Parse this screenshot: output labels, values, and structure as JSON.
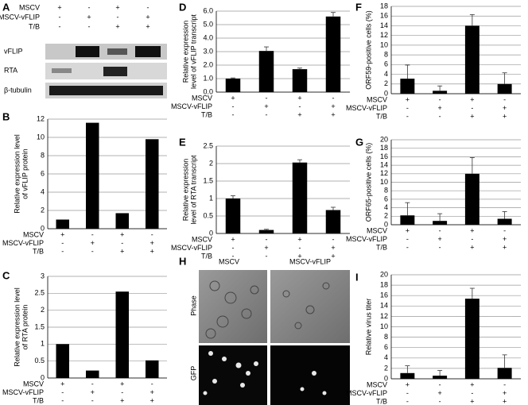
{
  "blot": {
    "panel": "A",
    "conditions": [
      {
        "name": "MSCV",
        "marks": [
          "+",
          "-",
          "+",
          "-"
        ]
      },
      {
        "name": "MSCV-vFLIP",
        "marks": [
          "-",
          "+",
          "-",
          "+"
        ]
      },
      {
        "name": "T/B",
        "marks": [
          "-",
          "-",
          "+",
          "+"
        ]
      }
    ],
    "rows": [
      "vFLIP",
      "RTA",
      "β-tubulin"
    ]
  },
  "micrograph": {
    "panel": "H",
    "columns": [
      "MSCV",
      "MSCV-vFLIP"
    ],
    "rows": [
      "Phase",
      "GFP"
    ]
  },
  "chart_data": [
    {
      "type": "bar",
      "panel": "B",
      "ylabel": [
        "Relative expression level",
        "of vFLIP protein"
      ],
      "values": [
        1,
        11.6,
        1.7,
        9.8
      ],
      "color": "#000000",
      "ylim": [
        0,
        12
      ],
      "yticks": [
        0,
        2,
        4,
        6,
        8,
        10,
        12
      ],
      "grid": true,
      "conditions": [
        {
          "name": "MSCV",
          "marks": [
            "+",
            "-",
            "+",
            "-"
          ]
        },
        {
          "name": "MSCV-vFLIP",
          "marks": [
            "-",
            "+",
            "-",
            "+"
          ]
        },
        {
          "name": "T/B",
          "marks": [
            "-",
            "-",
            "+",
            "+"
          ]
        }
      ]
    },
    {
      "type": "bar",
      "panel": "C",
      "ylabel": [
        "Relative expression level",
        "of RTA protein"
      ],
      "values": [
        1,
        0.22,
        2.55,
        0.52
      ],
      "color": "#000000",
      "ylim": [
        0,
        3
      ],
      "yticks": [
        0,
        0.5,
        1,
        1.5,
        2,
        2.5,
        3
      ],
      "grid": true,
      "conditions": [
        {
          "name": "MSCV",
          "marks": [
            "+",
            "-",
            "+",
            "-"
          ]
        },
        {
          "name": "MSCV-vFLIP",
          "marks": [
            "-",
            "+",
            "-",
            "+"
          ]
        },
        {
          "name": "T/B",
          "marks": [
            "-",
            "-",
            "+",
            "+"
          ]
        }
      ]
    },
    {
      "type": "bar",
      "panel": "D",
      "ylabel": [
        "Relative expression",
        "level of vFLIP transcript"
      ],
      "values": [
        1.0,
        3.05,
        1.7,
        5.6
      ],
      "error": [
        0.05,
        0.3,
        0.08,
        0.3
      ],
      "color": "#000000",
      "ylim": [
        0,
        6
      ],
      "yticks": [
        {
          "value": 0,
          "label": "0.0"
        },
        {
          "value": 1,
          "label": "1.0"
        },
        {
          "value": 2,
          "label": "2.0"
        },
        {
          "value": 3,
          "label": "3.0"
        },
        {
          "value": 4,
          "label": "4.0"
        },
        {
          "value": 5,
          "label": "5.0"
        },
        {
          "value": 6,
          "label": "6.0"
        }
      ],
      "grid": true,
      "conditions": [
        {
          "name": "MSCV",
          "marks": [
            "+",
            "-",
            "+",
            "-"
          ]
        },
        {
          "name": "MSCV-vFLIP",
          "marks": [
            "-",
            "+",
            "-",
            "+"
          ]
        },
        {
          "name": "T/B",
          "marks": [
            "-",
            "-",
            "+",
            "+"
          ]
        }
      ]
    },
    {
      "type": "bar",
      "panel": "E",
      "ylabel": [
        "Relative expression",
        "level of RTA transcript"
      ],
      "values": [
        1.0,
        0.1,
        2.03,
        0.67
      ],
      "error": [
        0.08,
        0.02,
        0.08,
        0.08
      ],
      "color": "#000000",
      "ylim": [
        0,
        2.5
      ],
      "yticks": [
        0,
        0.5,
        1,
        1.5,
        2,
        2.5
      ],
      "grid": true,
      "conditions": [
        {
          "name": "MSCV",
          "marks": [
            "+",
            "-",
            "+",
            "-"
          ]
        },
        {
          "name": "MSCV-vFLIP",
          "marks": [
            "-",
            "+",
            "-",
            "+"
          ]
        },
        {
          "name": "T/B",
          "marks": [
            "-",
            "-",
            "+",
            "+"
          ]
        }
      ]
    },
    {
      "type": "bar",
      "panel": "F",
      "ylabel": [
        "ORF59-positive cells (%)"
      ],
      "values": [
        3.1,
        0.6,
        14,
        2
      ],
      "error": [
        2.8,
        1,
        2.3,
        2.3
      ],
      "color": "#000000",
      "ylim": [
        0,
        18
      ],
      "yticks": [
        0,
        2,
        4,
        6,
        8,
        10,
        12,
        14,
        16,
        18
      ],
      "grid": true,
      "conditions": [
        {
          "name": "MSCV",
          "marks": [
            "+",
            "-",
            "+",
            "-"
          ]
        },
        {
          "name": "MSCV-vFLIP",
          "marks": [
            "-",
            "+",
            "-",
            "+"
          ]
        },
        {
          "name": "T/B",
          "marks": [
            "-",
            "-",
            "+",
            "+"
          ]
        }
      ]
    },
    {
      "type": "bar",
      "panel": "G",
      "ylabel": [
        "ORF65-positive cells (%)"
      ],
      "values": [
        2.2,
        0.9,
        12,
        1.4
      ],
      "error": [
        3,
        1.7,
        3.8,
        1.7
      ],
      "color": "#000000",
      "ylim": [
        0,
        20
      ],
      "yticks": [
        0,
        2,
        4,
        6,
        8,
        10,
        12,
        14,
        16,
        18,
        20
      ],
      "grid": true,
      "conditions": [
        {
          "name": "MSCV",
          "marks": [
            "+",
            "-",
            "+",
            "-"
          ]
        },
        {
          "name": "MSCV-vFLIP",
          "marks": [
            "-",
            "+",
            "-",
            "+"
          ]
        },
        {
          "name": "T/B",
          "marks": [
            "-",
            "-",
            "+",
            "+"
          ]
        }
      ]
    },
    {
      "type": "bar",
      "panel": "I",
      "ylabel": [
        "Relative virus titer"
      ],
      "values": [
        1.1,
        0.6,
        15.4,
        2.1
      ],
      "error": [
        1.4,
        1,
        2,
        2.5
      ],
      "color": "#000000",
      "ylim": [
        0,
        20
      ],
      "yticks": [
        0,
        2,
        4,
        6,
        8,
        10,
        12,
        14,
        16,
        18,
        20
      ],
      "grid": true,
      "conditions": [
        {
          "name": "MSCV",
          "marks": [
            "+",
            "-",
            "+",
            "-"
          ]
        },
        {
          "name": "MSCV-vFLIP",
          "marks": [
            "-",
            "+",
            "-",
            "+"
          ]
        },
        {
          "name": "T/B",
          "marks": [
            "-",
            "-",
            "+",
            "+"
          ]
        }
      ]
    }
  ]
}
